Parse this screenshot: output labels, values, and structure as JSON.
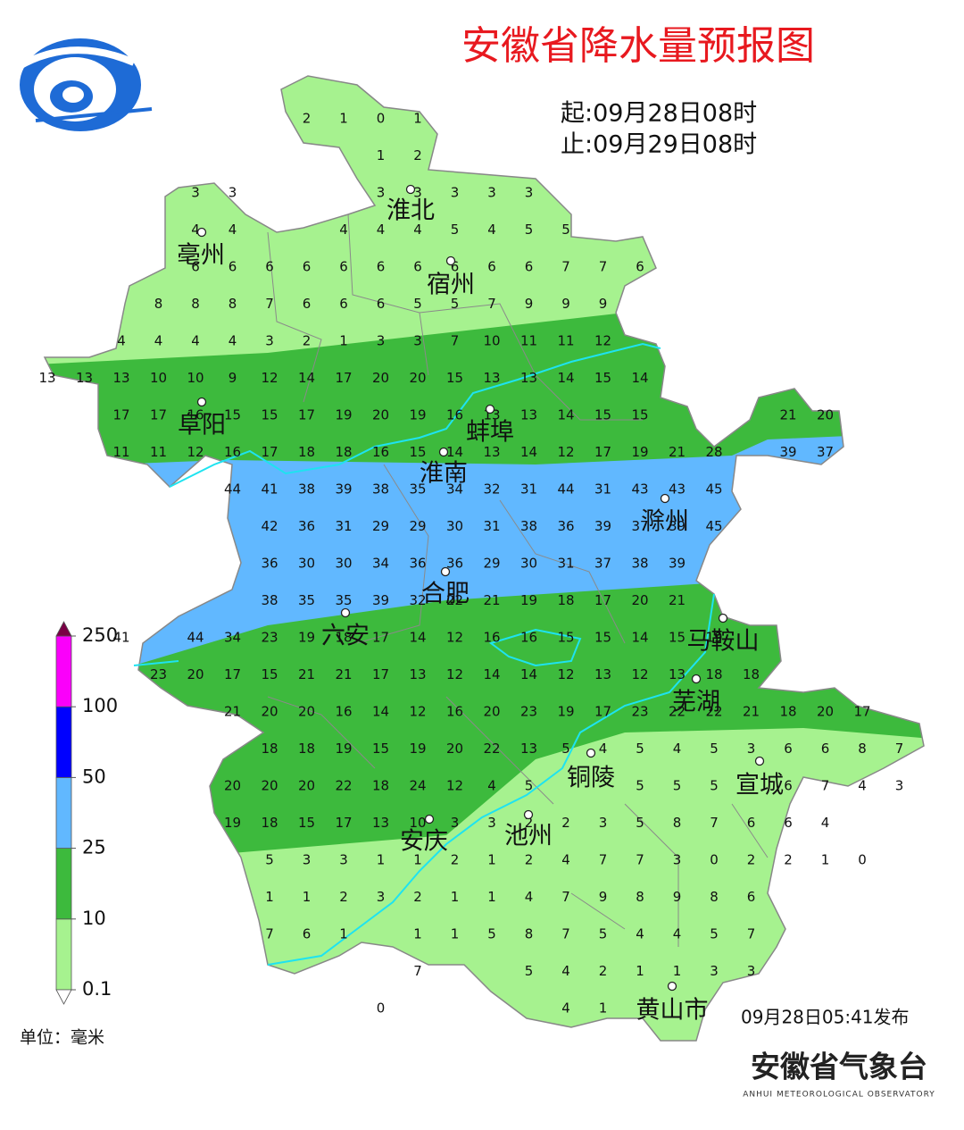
{
  "header": {
    "title": "安徽省降水量预报图",
    "start": "起:09月28日08时",
    "end": "止:09月29日08时"
  },
  "legend": {
    "ticks": [
      0.1,
      10,
      25,
      50,
      100,
      250
    ],
    "colors": [
      "#a6f28f",
      "#3dba3d",
      "#61b8ff",
      "#0000fe",
      "#fa00fa"
    ],
    "unit": "单位：毫米"
  },
  "cities": [
    "淮北",
    "亳州",
    "宿州",
    "阜阳",
    "蚌埠",
    "淮南",
    "滁州",
    "合肥",
    "六安",
    "马鞍山",
    "芜湖",
    "铜陵",
    "宣城",
    "安庆",
    "池州",
    "黄山市"
  ],
  "grid": {
    "rows": [
      [
        null,
        null,
        null,
        null,
        null,
        null,
        null,
        2,
        1,
        0,
        1,
        null,
        null,
        null,
        null,
        null,
        null,
        null,
        null,
        null,
        null,
        null,
        null,
        null
      ],
      [
        null,
        null,
        null,
        null,
        null,
        null,
        null,
        null,
        null,
        1,
        2,
        null,
        null,
        null,
        null,
        null,
        null,
        null,
        null,
        null,
        null,
        null,
        null,
        null
      ],
      [
        null,
        null,
        null,
        null,
        3,
        3,
        null,
        null,
        null,
        3,
        3,
        3,
        3,
        3,
        null,
        null,
        null,
        null,
        null,
        null,
        null,
        null,
        null,
        null
      ],
      [
        null,
        null,
        null,
        null,
        4,
        4,
        null,
        null,
        4,
        4,
        4,
        5,
        4,
        5,
        5,
        null,
        null,
        null,
        null,
        null,
        null,
        null,
        null,
        null
      ],
      [
        null,
        null,
        null,
        null,
        6,
        6,
        6,
        6,
        6,
        6,
        6,
        6,
        6,
        6,
        7,
        7,
        6,
        null,
        null,
        null,
        null,
        null,
        null,
        null
      ],
      [
        null,
        null,
        null,
        8,
        8,
        8,
        7,
        6,
        6,
        6,
        5,
        5,
        7,
        9,
        9,
        9,
        null,
        null,
        null,
        null,
        null,
        null,
        null,
        null
      ],
      [
        null,
        null,
        4,
        4,
        4,
        4,
        3,
        2,
        1,
        3,
        3,
        7,
        10,
        11,
        11,
        12,
        null,
        null,
        null,
        null,
        null,
        null,
        null,
        null
      ],
      [
        13,
        13,
        13,
        10,
        10,
        9,
        12,
        14,
        17,
        20,
        20,
        15,
        13,
        13,
        14,
        15,
        14,
        null,
        null,
        null,
        null,
        null,
        null,
        null
      ],
      [
        null,
        null,
        17,
        17,
        16,
        15,
        15,
        17,
        19,
        20,
        19,
        16,
        13,
        13,
        14,
        15,
        15,
        null,
        null,
        null,
        21,
        20,
        null,
        null
      ],
      [
        null,
        null,
        11,
        11,
        12,
        16,
        17,
        18,
        18,
        16,
        15,
        14,
        13,
        14,
        12,
        17,
        19,
        21,
        28,
        null,
        39,
        37,
        null,
        null
      ],
      [
        null,
        null,
        null,
        null,
        null,
        44,
        41,
        38,
        39,
        38,
        35,
        34,
        32,
        31,
        44,
        31,
        43,
        43,
        45,
        null,
        null,
        null,
        null,
        null
      ],
      [
        null,
        null,
        null,
        null,
        null,
        null,
        42,
        36,
        31,
        29,
        29,
        30,
        31,
        38,
        36,
        39,
        37,
        39,
        45,
        null,
        null,
        null,
        null,
        null
      ],
      [
        null,
        null,
        null,
        null,
        null,
        null,
        36,
        30,
        30,
        34,
        36,
        36,
        29,
        30,
        31,
        37,
        38,
        39,
        null,
        null,
        null,
        null,
        null,
        null
      ],
      [
        null,
        null,
        null,
        null,
        null,
        null,
        38,
        35,
        35,
        39,
        32,
        22,
        21,
        19,
        18,
        17,
        20,
        21,
        null,
        null,
        null,
        null,
        null,
        null
      ],
      [
        null,
        null,
        41,
        null,
        44,
        34,
        23,
        19,
        18,
        17,
        14,
        12,
        16,
        16,
        15,
        15,
        14,
        15,
        19,
        null,
        null,
        null,
        null,
        null
      ],
      [
        null,
        null,
        null,
        23,
        20,
        17,
        15,
        21,
        21,
        17,
        13,
        12,
        14,
        14,
        12,
        13,
        12,
        13,
        18,
        18,
        null,
        null,
        null,
        null
      ],
      [
        null,
        null,
        null,
        null,
        null,
        21,
        20,
        20,
        16,
        14,
        12,
        16,
        20,
        23,
        19,
        17,
        23,
        22,
        22,
        21,
        18,
        20,
        17,
        null
      ],
      [
        null,
        null,
        null,
        null,
        null,
        null,
        18,
        18,
        19,
        15,
        19,
        20,
        22,
        13,
        5,
        4,
        5,
        4,
        5,
        3,
        6,
        6,
        8,
        7
      ],
      [
        null,
        null,
        null,
        null,
        null,
        20,
        20,
        20,
        22,
        18,
        24,
        12,
        4,
        5,
        null,
        null,
        5,
        5,
        5,
        null,
        6,
        7,
        4,
        3
      ],
      [
        null,
        null,
        null,
        null,
        null,
        19,
        18,
        15,
        17,
        13,
        10,
        3,
        3,
        2,
        2,
        3,
        5,
        8,
        7,
        6,
        6,
        4,
        null,
        null
      ],
      [
        null,
        null,
        null,
        null,
        null,
        null,
        5,
        3,
        3,
        1,
        1,
        2,
        1,
        2,
        4,
        7,
        7,
        3,
        0,
        2,
        2,
        1,
        0,
        null
      ],
      [
        null,
        null,
        null,
        null,
        null,
        null,
        1,
        1,
        2,
        3,
        2,
        1,
        1,
        4,
        7,
        9,
        8,
        9,
        8,
        6,
        null,
        null,
        null,
        null
      ],
      [
        null,
        null,
        null,
        null,
        null,
        null,
        7,
        6,
        1,
        null,
        1,
        1,
        5,
        8,
        7,
        5,
        4,
        4,
        5,
        7,
        null,
        null,
        null,
        null
      ],
      [
        null,
        null,
        null,
        null,
        null,
        null,
        null,
        null,
        null,
        null,
        7,
        null,
        null,
        5,
        4,
        2,
        1,
        1,
        3,
        3,
        null,
        null,
        null,
        null
      ],
      [
        null,
        null,
        null,
        null,
        null,
        null,
        null,
        null,
        null,
        0,
        null,
        null,
        null,
        null,
        4,
        1,
        null,
        null,
        null,
        null,
        null,
        null,
        null,
        null
      ]
    ]
  },
  "footer": {
    "issued": "09月28日05:41发布",
    "org": "安徽省气象台",
    "org_en": "ANHUI METEOROLOGICAL OBSERVATORY"
  }
}
